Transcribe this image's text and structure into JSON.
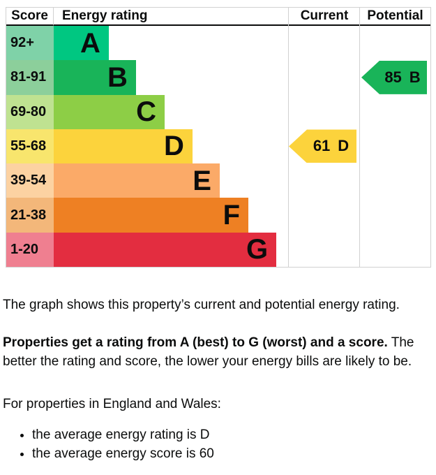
{
  "chart_data": {
    "type": "epc-energy-rating-chart",
    "headers": {
      "score": "Score",
      "rating": "Energy rating",
      "current": "Current",
      "potential": "Potential"
    },
    "bands": [
      {
        "score": "92+",
        "letter": "A",
        "color": "#00c781",
        "tint": "#7fd2a8",
        "width_pct": 23.4
      },
      {
        "score": "81-91",
        "letter": "B",
        "color": "#19b459",
        "tint": "#8ccf9b",
        "width_pct": 35.0
      },
      {
        "score": "69-80",
        "letter": "C",
        "color": "#8dce46",
        "tint": "#bfe291",
        "width_pct": 47.2
      },
      {
        "score": "55-68",
        "letter": "D",
        "color": "#fcd33c",
        "tint": "#f8e56d",
        "width_pct": 59.0
      },
      {
        "score": "39-54",
        "letter": "E",
        "color": "#fbaa68",
        "tint": "#fcd2a2",
        "width_pct": 70.6
      },
      {
        "score": "21-38",
        "letter": "F",
        "color": "#ee8023",
        "tint": "#f3b77a",
        "width_pct": 82.8
      },
      {
        "score": "1-20",
        "letter": "G",
        "color": "#e32d40",
        "tint": "#ef7f90",
        "width_pct": 94.7
      }
    ],
    "current": {
      "value": "61",
      "letter": "D",
      "band_index": 3,
      "color": "#fcd33c"
    },
    "potential": {
      "value": "85",
      "letter": "B",
      "band_index": 1,
      "color": "#19b459"
    }
  },
  "description": {
    "intro": "The graph shows this property’s current and potential energy rating.",
    "rating_bold": "Properties get a rating from A (best) to G (worst) and a score.",
    "rating_rest": " The better the rating and score, the lower your energy bills are likely to be.",
    "region_line": "For properties in England and Wales:",
    "bullets": [
      "the average energy rating is D",
      "the average energy score is 60"
    ]
  }
}
